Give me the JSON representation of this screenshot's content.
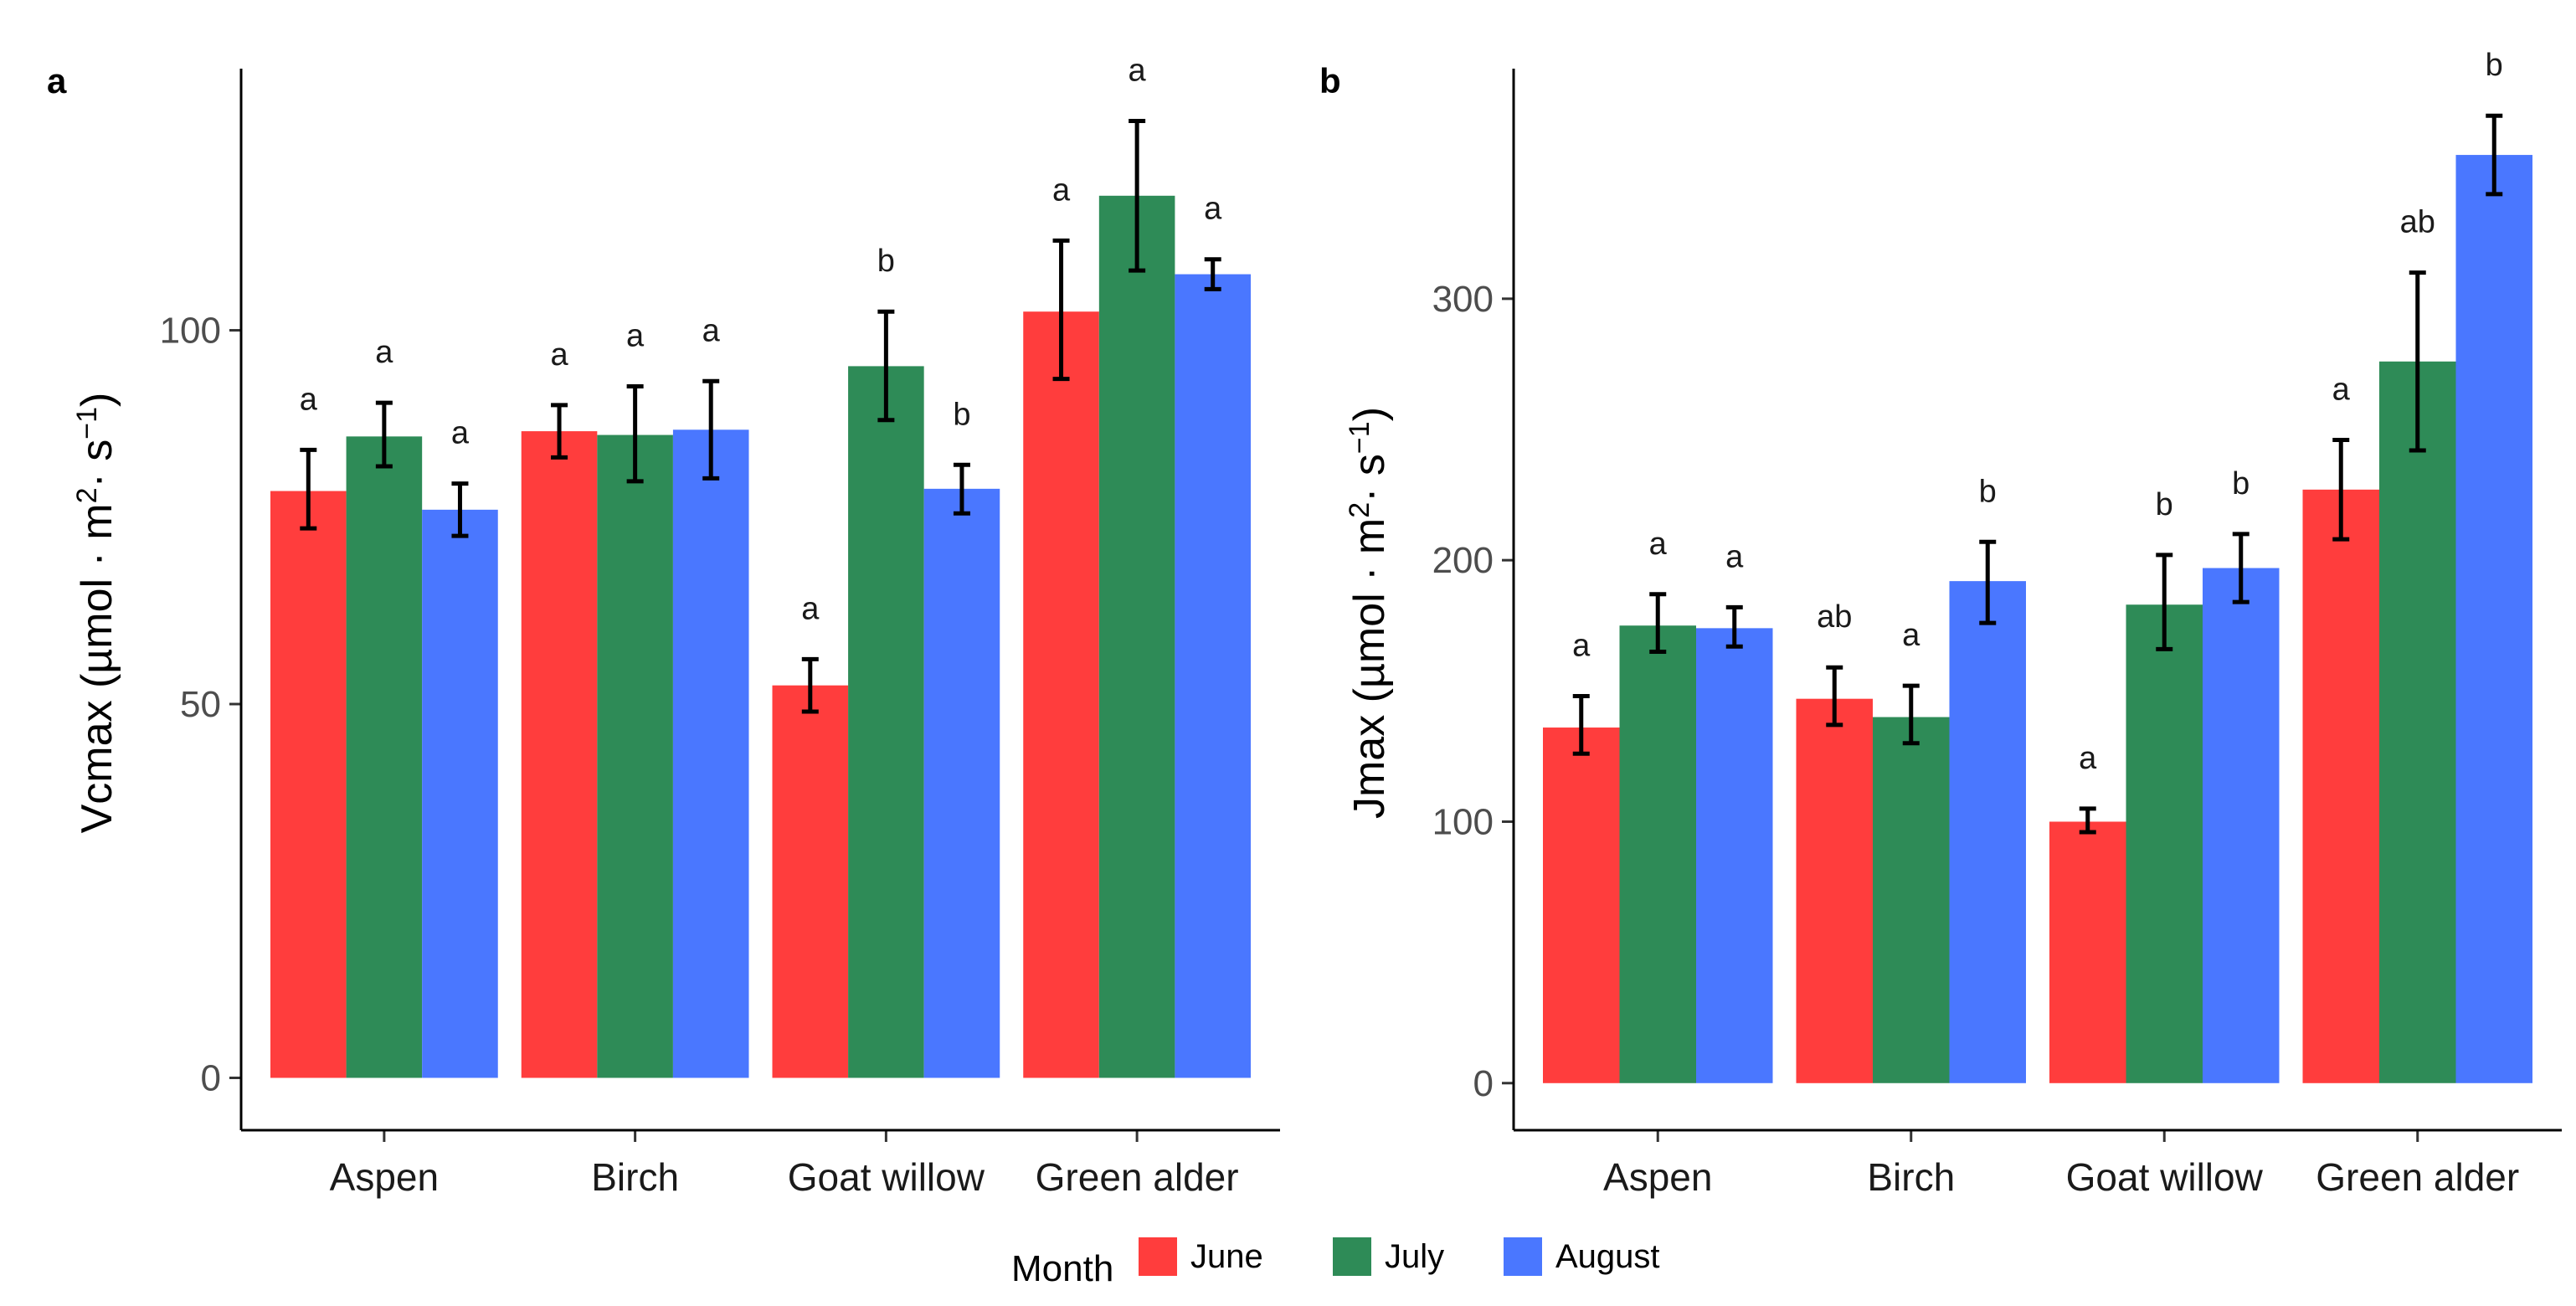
{
  "colors": {
    "June": "#ff3d3d",
    "July": "#2e8b57",
    "August": "#4a77ff",
    "error_bar": "#000000",
    "axis": "#000000"
  },
  "legend": {
    "title": "Month",
    "placement": "bottom",
    "items": [
      "June",
      "July",
      "August"
    ]
  },
  "chart_data": [
    {
      "type": "bar",
      "panel": "a",
      "categories": [
        "Aspen",
        "Birch",
        "Goat willow",
        "Green alder"
      ],
      "ylabel": "Vcmax (µmol · m2 · s−1)",
      "ylabel_parts": {
        "pre": "Vcmax (µmol · m",
        "sup1": "2",
        "mid": "· s",
        "sup2": "−1",
        "post": ")"
      },
      "xlabel": "",
      "ylim": [
        -7,
        135
      ],
      "yticks": [
        0,
        50,
        100
      ],
      "grid": false,
      "series": [
        {
          "name": "June",
          "values": [
            78.5,
            86.5,
            52.5,
            102.5
          ],
          "err_low": [
            73.5,
            83.0,
            49.0,
            93.5
          ],
          "err_high": [
            84.0,
            90.0,
            56.0,
            112.0
          ],
          "letters": [
            "a",
            "a",
            "a",
            "a"
          ]
        },
        {
          "name": "July",
          "values": [
            85.8,
            86.0,
            95.2,
            118.0
          ],
          "err_low": [
            81.8,
            79.8,
            88.0,
            108.0
          ],
          "err_high": [
            90.3,
            92.5,
            102.5,
            128.0
          ],
          "letters": [
            "a",
            "a",
            "b",
            "a"
          ]
        },
        {
          "name": "August",
          "values": [
            76.0,
            86.7,
            78.8,
            107.5
          ],
          "err_low": [
            72.5,
            80.2,
            75.5,
            105.5
          ],
          "err_high": [
            79.5,
            93.2,
            82.0,
            109.5
          ],
          "letters": [
            "a",
            "a",
            "b",
            "a"
          ]
        }
      ]
    },
    {
      "type": "bar",
      "panel": "b",
      "categories": [
        "Aspen",
        "Birch",
        "Goat willow",
        "Green alder"
      ],
      "ylabel": "Jmax (µmol · m2 · s−1)",
      "ylabel_parts": {
        "pre": "Jmax (µmol · m",
        "sup1": "2",
        "mid": "· s",
        "sup2": "−1",
        "post": ")"
      },
      "xlabel": "",
      "ylim": [
        -18,
        388
      ],
      "yticks": [
        0,
        100,
        200,
        300
      ],
      "grid": false,
      "series": [
        {
          "name": "June",
          "values": [
            136,
            147,
            100,
            227
          ],
          "err_low": [
            126,
            137,
            96,
            208
          ],
          "err_high": [
            148,
            159,
            105,
            246
          ],
          "letters": [
            "a",
            "ab",
            "a",
            "a"
          ]
        },
        {
          "name": "July",
          "values": [
            175,
            140,
            183,
            276
          ],
          "err_low": [
            165,
            130,
            166,
            242
          ],
          "err_high": [
            187,
            152,
            202,
            310
          ],
          "letters": [
            "a",
            "a",
            "b",
            "ab"
          ]
        },
        {
          "name": "August",
          "values": [
            174,
            192,
            197,
            355
          ],
          "err_low": [
            167,
            176,
            184,
            340
          ],
          "err_high": [
            182,
            207,
            210,
            370
          ],
          "letters": [
            "a",
            "b",
            "b",
            "b"
          ]
        }
      ]
    }
  ]
}
